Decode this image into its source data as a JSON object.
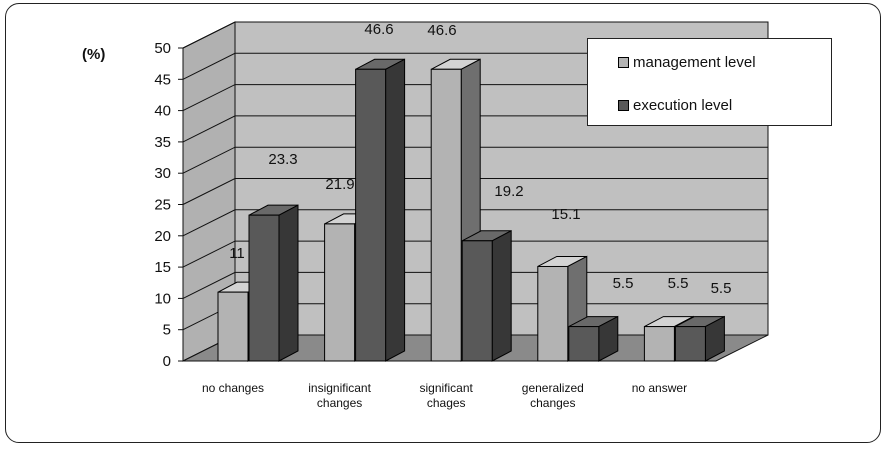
{
  "chart_data": {
    "type": "bar",
    "unit_label": "(%)",
    "categories": [
      [
        "no changes"
      ],
      [
        "insignificant",
        "changes"
      ],
      [
        "significant",
        "chages"
      ],
      [
        "generalized",
        "changes"
      ],
      [
        "no answer"
      ]
    ],
    "series": [
      {
        "name": "management level",
        "values": [
          11,
          21.9,
          46.6,
          15.1,
          5.5
        ],
        "color": "#b3b3b3"
      },
      {
        "name": "execution level",
        "values": [
          23.3,
          46.6,
          19.2,
          5.5,
          5.5
        ],
        "color": "#595959"
      }
    ],
    "ylim": [
      0,
      50
    ],
    "yticks": [
      0,
      5,
      10,
      15,
      20,
      25,
      30,
      35,
      40,
      45,
      50
    ],
    "grid": true,
    "legend_position": "top-right",
    "wall_color": "#c0c0c0",
    "floor_color": "#8a8a8a"
  }
}
